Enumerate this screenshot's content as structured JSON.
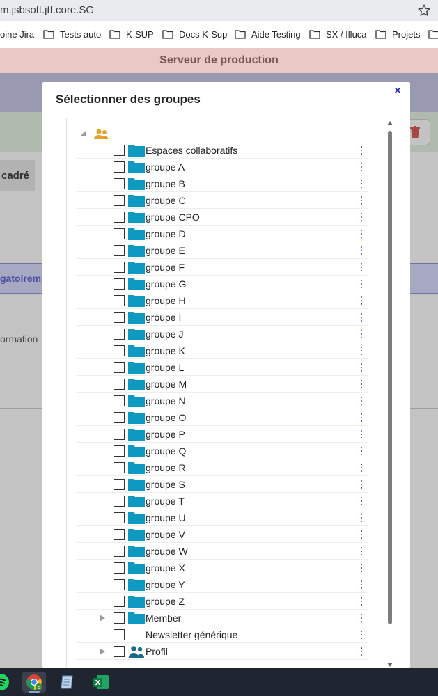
{
  "browser": {
    "url": "m.jsbsoft.jtf.core.SG",
    "bookmarks": [
      "oine Jira",
      "Tests auto",
      "K-SUP",
      "Docs K-Sup",
      "Aide Testing",
      "SX / Illuca",
      "Projets"
    ]
  },
  "background": {
    "banner": "Serveur de production",
    "tab_label": "cadré",
    "required_text": "gatoirem",
    "info_text": "ormation"
  },
  "modal": {
    "title": "Sélectionner des groupes",
    "close_symbol": "×",
    "root_icon": "group-users-icon",
    "items": [
      {
        "label": "Espaces collaboratifs",
        "icon": "folder-icon",
        "expandable": false
      },
      {
        "label": "groupe A",
        "icon": "folder-icon",
        "expandable": false
      },
      {
        "label": "groupe B",
        "icon": "folder-icon",
        "expandable": false
      },
      {
        "label": "groupe C",
        "icon": "folder-icon",
        "expandable": false
      },
      {
        "label": "groupe CPO",
        "icon": "folder-icon",
        "expandable": false
      },
      {
        "label": "groupe D",
        "icon": "folder-icon",
        "expandable": false
      },
      {
        "label": "groupe E",
        "icon": "folder-icon",
        "expandable": false
      },
      {
        "label": "groupe F",
        "icon": "folder-icon",
        "expandable": false
      },
      {
        "label": "groupe G",
        "icon": "folder-icon",
        "expandable": false
      },
      {
        "label": "groupe H",
        "icon": "folder-icon",
        "expandable": false
      },
      {
        "label": "groupe I",
        "icon": "folder-icon",
        "expandable": false
      },
      {
        "label": "groupe J",
        "icon": "folder-icon",
        "expandable": false
      },
      {
        "label": "groupe K",
        "icon": "folder-icon",
        "expandable": false
      },
      {
        "label": "groupe L",
        "icon": "folder-icon",
        "expandable": false
      },
      {
        "label": "groupe M",
        "icon": "folder-icon",
        "expandable": false
      },
      {
        "label": "groupe N",
        "icon": "folder-icon",
        "expandable": false
      },
      {
        "label": "groupe O",
        "icon": "folder-icon",
        "expandable": false
      },
      {
        "label": "groupe P",
        "icon": "folder-icon",
        "expandable": false
      },
      {
        "label": "groupe Q",
        "icon": "folder-icon",
        "expandable": false
      },
      {
        "label": "groupe R",
        "icon": "folder-icon",
        "expandable": false
      },
      {
        "label": "groupe S",
        "icon": "folder-icon",
        "expandable": false
      },
      {
        "label": "groupe T",
        "icon": "folder-icon",
        "expandable": false
      },
      {
        "label": "groupe U",
        "icon": "folder-icon",
        "expandable": false
      },
      {
        "label": "groupe V",
        "icon": "folder-icon",
        "expandable": false
      },
      {
        "label": "groupe W",
        "icon": "folder-icon",
        "expandable": false
      },
      {
        "label": "groupe X",
        "icon": "folder-icon",
        "expandable": false
      },
      {
        "label": "groupe Y",
        "icon": "folder-icon",
        "expandable": false
      },
      {
        "label": "groupe Z",
        "icon": "folder-icon",
        "expandable": false
      },
      {
        "label": "Member",
        "icon": "folder-icon",
        "expandable": true
      },
      {
        "label": "Newsletter générique",
        "icon": "none",
        "expandable": false
      },
      {
        "label": "Profil",
        "icon": "group-users-icon",
        "expandable": true
      }
    ]
  },
  "taskbar": {
    "apps": [
      "spotify-icon",
      "chrome-icon",
      "notepad-icon",
      "excel-icon"
    ]
  },
  "colors": {
    "folder": "#0e9ac0",
    "user_icon": "#e6a02c",
    "profile_icon": "#176c8c",
    "close": "#2a2db8",
    "menu_dots": "#2a52be"
  }
}
